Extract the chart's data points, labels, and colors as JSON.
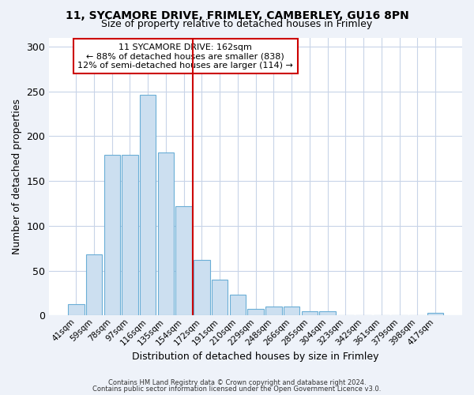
{
  "title1": "11, SYCAMORE DRIVE, FRIMLEY, CAMBERLEY, GU16 8PN",
  "title2": "Size of property relative to detached houses in Frimley",
  "xlabel": "Distribution of detached houses by size in Frimley",
  "ylabel": "Number of detached properties",
  "bar_labels": [
    "41sqm",
    "59sqm",
    "78sqm",
    "97sqm",
    "116sqm",
    "135sqm",
    "154sqm",
    "172sqm",
    "191sqm",
    "210sqm",
    "229sqm",
    "248sqm",
    "266sqm",
    "285sqm",
    "304sqm",
    "323sqm",
    "342sqm",
    "361sqm",
    "379sqm",
    "398sqm",
    "417sqm"
  ],
  "bar_values": [
    13,
    68,
    179,
    179,
    246,
    182,
    122,
    62,
    40,
    23,
    7,
    10,
    10,
    5,
    5,
    0,
    0,
    0,
    0,
    0,
    3
  ],
  "bar_color": "#ccdff0",
  "bar_edgecolor": "#6aaed6",
  "vline_color": "#cc0000",
  "annotation_title": "11 SYCAMORE DRIVE: 162sqm",
  "annotation_line2": "← 88% of detached houses are smaller (838)",
  "annotation_line3": "12% of semi-detached houses are larger (114) →",
  "annotation_box_edgecolor": "#cc0000",
  "ylim": [
    0,
    310
  ],
  "yticks": [
    0,
    50,
    100,
    150,
    200,
    250,
    300
  ],
  "footer1": "Contains HM Land Registry data © Crown copyright and database right 2024.",
  "footer2": "Contains public sector information licensed under the Open Government Licence v3.0.",
  "bg_color": "#eef2f9",
  "plot_bg_color": "#ffffff",
  "grid_color": "#c8d4e8"
}
